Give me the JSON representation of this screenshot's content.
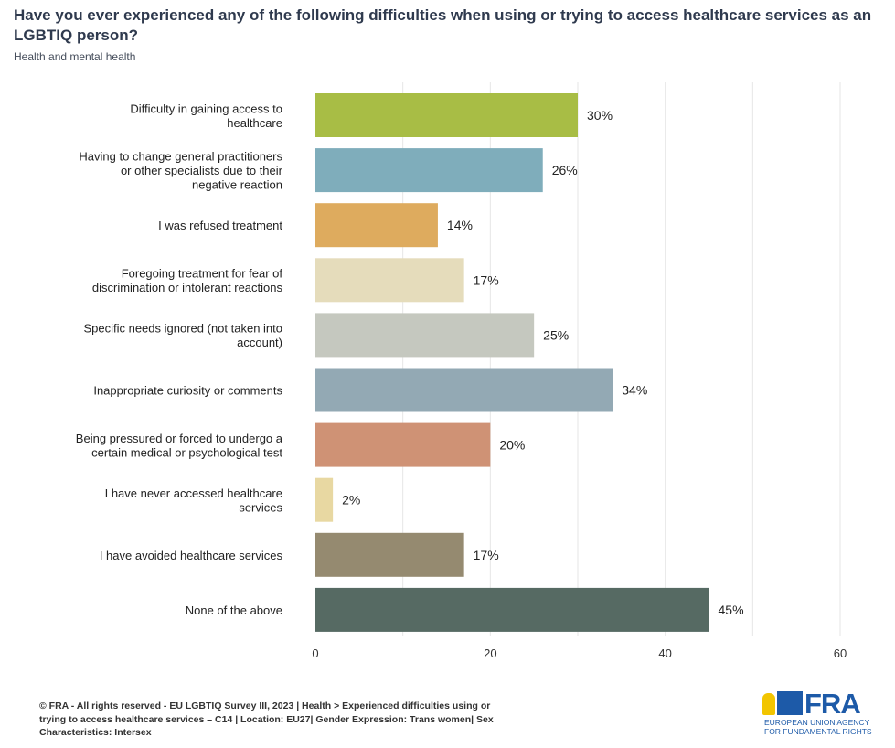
{
  "chart_data": {
    "type": "bar",
    "orientation": "horizontal",
    "title": "Have you ever experienced any of the following difficulties when using or trying to access healthcare services as an LGBTIQ person?",
    "subtitle": "Health and mental health",
    "categories": [
      [
        "Difficulty in gaining access to",
        "healthcare"
      ],
      [
        "Having to change general practitioners",
        "or other specialists due to their",
        "negative reaction"
      ],
      [
        "I was refused treatment"
      ],
      [
        "Foregoing treatment for fear of",
        "discrimination or intolerant reactions"
      ],
      [
        "Specific needs ignored (not taken into",
        "account)"
      ],
      [
        "Inappropriate curiosity or comments"
      ],
      [
        "Being pressured or forced to undergo a",
        "certain medical or psychological test"
      ],
      [
        "I have never accessed healthcare",
        "services"
      ],
      [
        "I have avoided healthcare services"
      ],
      [
        "None of the above"
      ]
    ],
    "values": [
      30,
      26,
      14,
      17,
      25,
      34,
      20,
      2,
      17,
      45
    ],
    "data_labels": [
      "30%",
      "26%",
      "14%",
      "17%",
      "25%",
      "34%",
      "20%",
      "2%",
      "17%",
      "45%"
    ],
    "colors": [
      "#a8bd45",
      "#7fadbb",
      "#deab5e",
      "#e5dcbb",
      "#c5c8bf",
      "#93a9b4",
      "#cf9275",
      "#e8d8a2",
      "#958a70",
      "#566a63"
    ],
    "xlim": [
      0,
      60
    ],
    "xticks": [
      0,
      20,
      40,
      60
    ],
    "grid": true
  },
  "footer": {
    "source_lines": [
      "© FRA - All rights reserved - EU LGBTIQ Survey III, 2023 | Health > Experienced difficulties using or",
      "trying to access healthcare services – C14 | Location: EU27| Gender Expression: Trans women| Sex",
      "Characteristics: Intersex"
    ]
  },
  "logo": {
    "text": "FRA",
    "subtext": [
      "EUROPEAN UNION AGENCY",
      "FOR FUNDAMENTAL RIGHTS"
    ]
  }
}
